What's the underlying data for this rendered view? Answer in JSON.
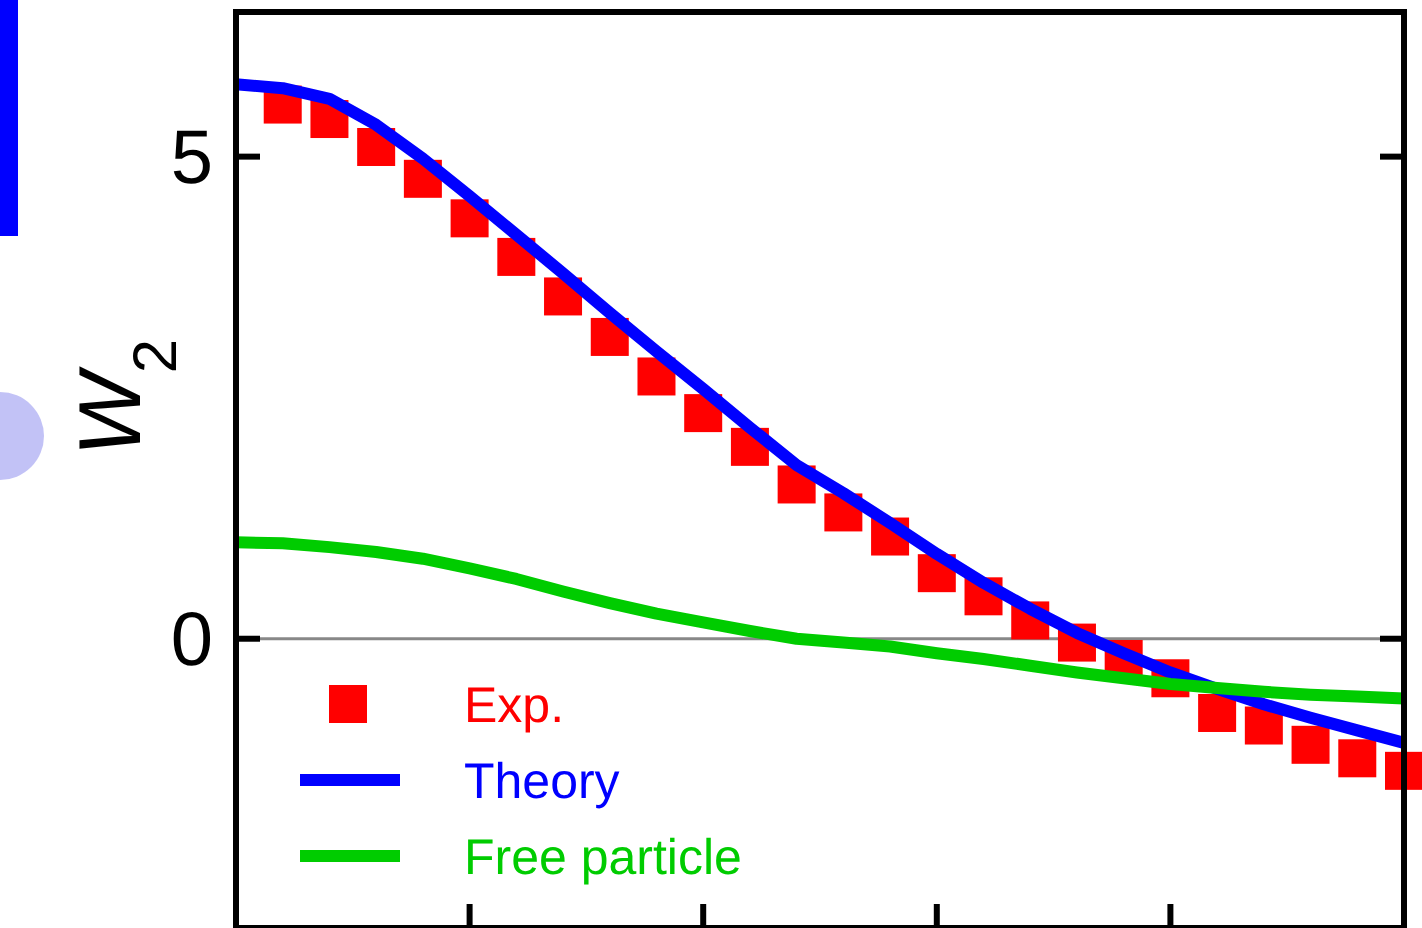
{
  "chart_data": {
    "type": "line",
    "ylabel": "W$_{2}$",
    "ylim": [
      -3,
      6.5
    ],
    "categories": [
      null,
      null,
      null,
      null,
      null,
      null,
      null,
      null,
      null,
      null,
      null,
      null,
      null,
      null,
      null,
      null,
      null,
      null,
      null,
      null,
      null,
      null,
      null,
      null,
      null,
      null
    ],
    "yticks": [
      0,
      5
    ],
    "grid": false,
    "legend": "bottom left",
    "ref_lines": [
      {
        "axis": "y",
        "value": 0,
        "color": "#888888"
      }
    ],
    "series": [
      {
        "name": "Exp.",
        "type": "scatter",
        "marker": "square",
        "color": "#ff0000",
        "values": [
          null,
          5.54,
          5.39,
          5.1,
          4.77,
          4.36,
          3.96,
          3.55,
          3.13,
          2.72,
          2.34,
          1.99,
          1.6,
          1.31,
          1.06,
          0.68,
          0.44,
          0.19,
          -0.04,
          -0.21,
          -0.41,
          -0.77,
          -0.9,
          -1.1,
          -1.24,
          -1.37
        ]
      },
      {
        "name": "Theory",
        "line_style": "solid",
        "color": "#0000ff",
        "values": [
          5.75,
          5.71,
          5.6,
          5.33,
          4.98,
          4.59,
          4.19,
          3.79,
          3.38,
          2.98,
          2.59,
          2.19,
          1.8,
          1.51,
          1.2,
          0.88,
          0.58,
          0.31,
          0.06,
          -0.15,
          -0.35,
          -0.52,
          -0.68,
          -0.82,
          -0.95,
          -1.08
        ]
      },
      {
        "name": "Free particle",
        "line_style": "solid",
        "color": "#00cc00",
        "values": [
          1.0,
          0.99,
          0.95,
          0.9,
          0.83,
          0.73,
          0.62,
          0.49,
          0.37,
          0.26,
          0.17,
          0.08,
          0.0,
          -0.04,
          -0.08,
          -0.15,
          -0.21,
          -0.28,
          -0.35,
          -0.41,
          -0.47,
          -0.51,
          -0.55,
          -0.58,
          -0.6,
          -0.62
        ]
      }
    ]
  }
}
